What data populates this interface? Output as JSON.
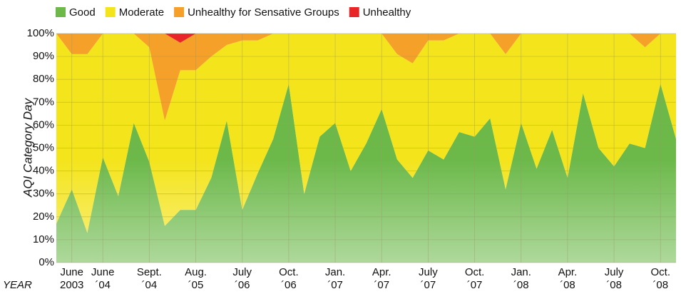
{
  "chart_data": {
    "type": "stacked_area",
    "y_label": "AQI Category Day",
    "x_label": "YEAR",
    "categories": [
      null,
      "June 2003",
      null,
      "June ´04",
      null,
      null,
      "Sept. ´04",
      null,
      null,
      "Aug. ´05",
      null,
      null,
      "July ´06",
      null,
      null,
      "Oct. ´06",
      null,
      null,
      "Jan. ´07",
      null,
      null,
      "Apr. ´07",
      null,
      null,
      "July ´07",
      null,
      null,
      "Oct. ´07",
      null,
      null,
      "Jan. ´08",
      null,
      null,
      "Apr. ´08",
      null,
      null,
      "July ´08",
      null,
      null,
      "Oct. ´08",
      null
    ],
    "series": [
      {
        "name": "Good",
        "color": "#6cb94a",
        "values": [
          17,
          32,
          13,
          46,
          29,
          61,
          44,
          16,
          23,
          23,
          37,
          62,
          23,
          39,
          54,
          78,
          30,
          55,
          61,
          40,
          52,
          67,
          45,
          37,
          49,
          45,
          57,
          55,
          63,
          32,
          61,
          41,
          58,
          37,
          74,
          50,
          42,
          52,
          50,
          78,
          54
        ]
      },
      {
        "name": "Moderate",
        "color": "#f4e41c",
        "values": [
          83,
          59,
          78,
          54,
          71,
          39,
          50,
          46,
          61,
          61,
          53,
          33,
          74,
          58,
          46,
          22,
          70,
          45,
          39,
          60,
          48,
          33,
          46,
          50,
          48,
          52,
          43,
          45,
          37,
          59,
          39,
          59,
          42,
          63,
          26,
          50,
          58,
          48,
          44,
          22,
          46
        ]
      },
      {
        "name": "Unhealthy for Sensative Groups",
        "color": "#f5a029",
        "values": [
          0,
          9,
          9,
          0,
          0,
          0,
          6,
          38,
          12,
          16,
          10,
          5,
          3,
          3,
          0,
          0,
          0,
          0,
          0,
          0,
          0,
          0,
          9,
          13,
          3,
          3,
          0,
          0,
          0,
          9,
          0,
          0,
          0,
          0,
          0,
          0,
          0,
          0,
          6,
          0,
          0
        ]
      },
      {
        "name": "Unhealthy",
        "color": "#e8262a",
        "values": [
          0,
          0,
          0,
          0,
          0,
          0,
          0,
          0,
          4,
          0,
          0,
          0,
          0,
          0,
          0,
          0,
          0,
          0,
          0,
          0,
          0,
          0,
          0,
          0,
          0,
          0,
          0,
          0,
          0,
          0,
          0,
          0,
          0,
          0,
          0,
          0,
          0,
          0,
          0,
          0,
          0
        ]
      }
    ],
    "ylim": [
      0,
      100
    ],
    "yticks": [
      {
        "value": 0,
        "label": "0%"
      },
      {
        "value": 10,
        "label": "10%"
      },
      {
        "value": 20,
        "label": "20%"
      },
      {
        "value": 30,
        "label": "30%"
      },
      {
        "value": 40,
        "label": "40%"
      },
      {
        "value": 50,
        "label": "50%"
      },
      {
        "value": 60,
        "label": "60%"
      },
      {
        "value": 70,
        "label": "70%"
      },
      {
        "value": 80,
        "label": "80%"
      },
      {
        "value": 90,
        "label": "90%"
      },
      {
        "value": 100,
        "label": "100%"
      }
    ],
    "grid": true
  }
}
